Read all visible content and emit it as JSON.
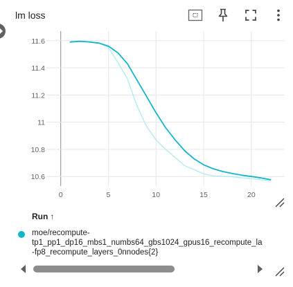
{
  "card": {
    "title": "lm loss",
    "icons": [
      "fit-to-data-icon",
      "pin-icon",
      "fullscreen-icon",
      "more-vert-icon"
    ]
  },
  "chart_data": {
    "type": "line",
    "title": "",
    "xlabel": "",
    "ylabel": "",
    "xlim": [
      -1.5,
      23.5
    ],
    "ylim": [
      10.53,
      11.67
    ],
    "x_ticks": [
      0,
      5,
      10,
      15,
      20
    ],
    "y_ticks": [
      10.6,
      10.8,
      11,
      11.2,
      11.4,
      11.6
    ],
    "x_tick_labels": [
      "0",
      "5",
      "10",
      "15",
      "20"
    ],
    "y_tick_labels": [
      "10.6",
      "10.8",
      "11",
      "11.2",
      "11.4",
      "11.6"
    ],
    "grid": true,
    "series": [
      {
        "role": "smoothed",
        "color": "#12b5cb",
        "points": [
          [
            1,
            11.59
          ],
          [
            2,
            11.595
          ],
          [
            3,
            11.59
          ],
          [
            4,
            11.582
          ],
          [
            5,
            11.56
          ],
          [
            6,
            11.51
          ],
          [
            7,
            11.43
          ],
          [
            8,
            11.31
          ],
          [
            9,
            11.19
          ],
          [
            10,
            11.07
          ],
          [
            11,
            10.96
          ],
          [
            12,
            10.87
          ],
          [
            13,
            10.79
          ],
          [
            14,
            10.73
          ],
          [
            15,
            10.686
          ],
          [
            16,
            10.657
          ],
          [
            17,
            10.637
          ],
          [
            18,
            10.622
          ],
          [
            19,
            10.61
          ],
          [
            20,
            10.6
          ],
          [
            21,
            10.59
          ],
          [
            22,
            10.577
          ]
        ]
      },
      {
        "role": "raw",
        "color": "#b2ebf2",
        "points": [
          [
            1,
            11.59
          ],
          [
            2,
            11.595
          ],
          [
            3,
            11.59
          ],
          [
            4,
            11.585
          ],
          [
            5,
            11.55
          ],
          [
            6,
            11.44
          ],
          [
            7,
            11.32
          ],
          [
            8,
            11.12
          ],
          [
            9,
            10.97
          ],
          [
            10,
            10.87
          ],
          [
            11,
            10.8
          ],
          [
            12,
            10.74
          ],
          [
            13,
            10.68
          ],
          [
            14,
            10.65
          ],
          [
            15,
            10.62
          ],
          [
            16,
            10.605
          ],
          [
            17,
            10.6
          ],
          [
            18,
            10.598
          ],
          [
            19,
            10.59
          ],
          [
            20,
            10.585
          ],
          [
            21,
            10.575
          ],
          [
            22,
            10.57
          ]
        ]
      }
    ]
  },
  "legend": {
    "header": "Run",
    "sort_arrow": "↑",
    "run_color": "#12b5cb",
    "run_lines": [
      "moe/recompute-",
      "tp1_pp1_dp16_mbs1_numbs64_gbs1024_gpus16_recompute_la",
      "-fp8_recompute_layers_0nnodes{2}"
    ]
  }
}
